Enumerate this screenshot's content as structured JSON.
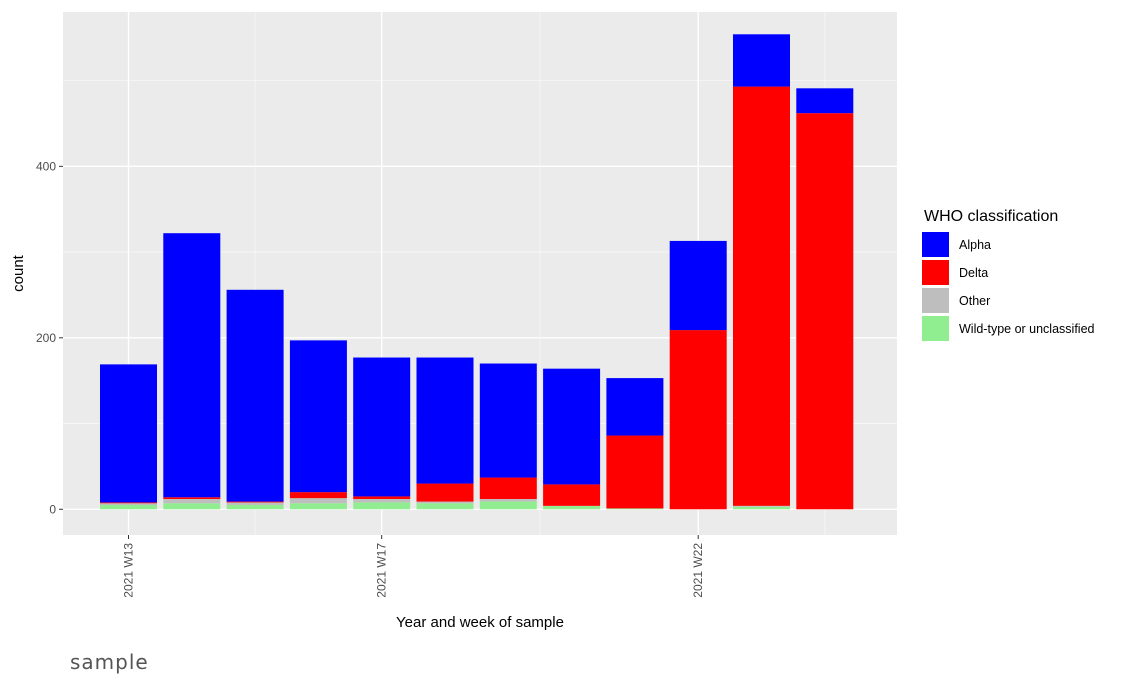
{
  "caption": "sample",
  "chart_data": {
    "type": "bar",
    "stacked": true,
    "xlabel": "Year and week of sample",
    "ylabel": "count",
    "ylim": [
      -30,
      580
    ],
    "y_ticks": [
      0,
      200,
      400
    ],
    "x_tick_labels": [
      {
        "label": "2021 W13",
        "index": 0
      },
      {
        "label": "2021 W17",
        "index": 4
      },
      {
        "label": "2021 W22",
        "index": 9
      }
    ],
    "bar_count": 12,
    "grid": true,
    "legend": {
      "title": "WHO classification",
      "placement": "right",
      "entries": [
        "Alpha",
        "Delta",
        "Other",
        "Wild-type or unclassified"
      ]
    },
    "series": [
      {
        "name": "Wild-type or unclassified",
        "color": "#90ee90",
        "values": [
          5,
          7,
          5,
          7,
          8,
          7,
          9,
          4,
          1,
          0,
          3,
          0
        ]
      },
      {
        "name": "Other",
        "color": "#bebebe",
        "values": [
          2,
          5,
          3,
          6,
          4,
          2,
          3,
          0,
          0,
          0,
          1,
          0
        ]
      },
      {
        "name": "Delta",
        "color": "#ff0000",
        "values": [
          1,
          2,
          1,
          7,
          3,
          21,
          25,
          25,
          85,
          209,
          489,
          462
        ]
      },
      {
        "name": "Alpha",
        "color": "#0000ff",
        "values": [
          161,
          308,
          247,
          177,
          162,
          147,
          133,
          135,
          67,
          104,
          61,
          29
        ]
      }
    ]
  }
}
